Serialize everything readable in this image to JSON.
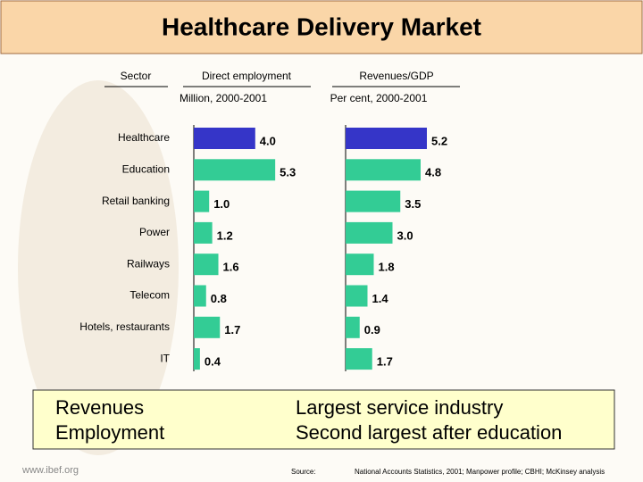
{
  "title": "Healthcare Delivery Market",
  "sector_label": "Sector",
  "chart_data": [
    {
      "type": "bar",
      "orientation": "horizontal",
      "title": "Direct employment",
      "subtitle": "Million, 2000-2001",
      "categories": [
        "Healthcare",
        "Education",
        "Retail banking",
        "Power",
        "Railways",
        "Telecom",
        "Hotels, restaurants",
        "IT"
      ],
      "values": [
        4.0,
        5.3,
        1.0,
        1.2,
        1.6,
        0.8,
        1.7,
        0.4
      ],
      "value_labels": [
        "4.0",
        "5.3",
        "1.0",
        "1.2",
        "1.6",
        "0.8",
        "1.7",
        "0.4"
      ],
      "colors": [
        "#3535c8",
        "#33cc95",
        "#33cc95",
        "#33cc95",
        "#33cc95",
        "#33cc95",
        "#33cc95",
        "#33cc95"
      ]
    },
    {
      "type": "bar",
      "orientation": "horizontal",
      "title": "Revenues/GDP",
      "subtitle": "Per cent, 2000-2001",
      "categories": [
        "Healthcare",
        "Education",
        "Retail banking",
        "Power",
        "Railways",
        "Telecom",
        "Hotels, restaurants",
        "IT"
      ],
      "values": [
        5.2,
        4.8,
        3.5,
        3.0,
        1.8,
        1.4,
        0.9,
        1.7
      ],
      "value_labels": [
        "5.2",
        "4.8",
        "3.5",
        "3.0",
        "1.8",
        "1.4",
        "0.9",
        "1.7"
      ],
      "colors": [
        "#3535c8",
        "#33cc95",
        "#33cc95",
        "#33cc95",
        "#33cc95",
        "#33cc95",
        "#33cc95",
        "#33cc95"
      ]
    }
  ],
  "notes": {
    "left": [
      "Revenues",
      "Employment"
    ],
    "right": [
      "Largest service industry",
      "Second largest after education"
    ]
  },
  "source_label": "Source:",
  "source": "National Accounts Statistics, 2001; Manpower profile; CBHI; McKinsey analysis",
  "logo": "www.ibef.org"
}
